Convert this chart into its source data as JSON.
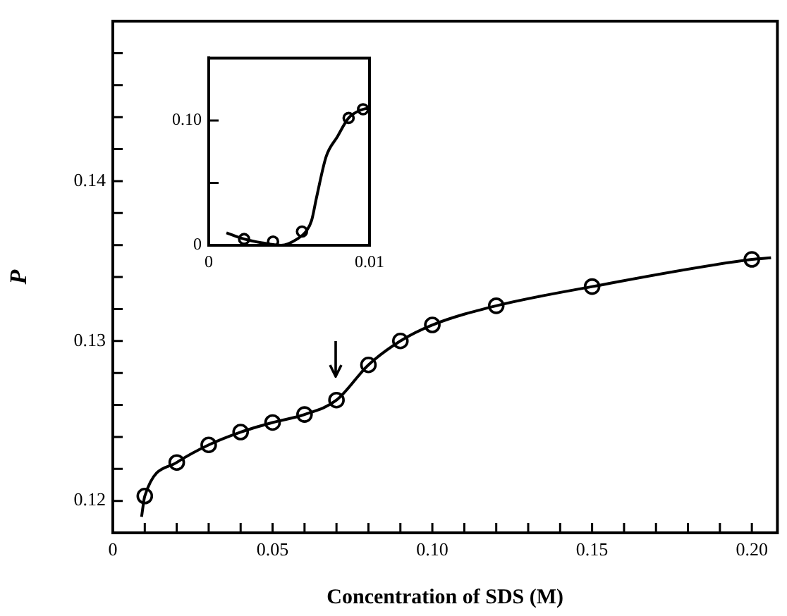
{
  "chart_data": [
    {
      "type": "line",
      "xlabel": "Concentration of SDS (M)",
      "ylabel": "P",
      "xlim": [
        0,
        0.208
      ],
      "ylim": [
        0.118,
        0.15
      ],
      "xticks": [
        0,
        {
          "value": 0.01,
          "label": null
        },
        {
          "value": 0.02,
          "label": null
        },
        {
          "value": 0.03,
          "label": null
        },
        {
          "value": 0.04,
          "label": null
        },
        0.05,
        {
          "value": 0.06,
          "label": null
        },
        {
          "value": 0.07,
          "label": null
        },
        {
          "value": 0.08,
          "label": null
        },
        {
          "value": 0.09,
          "label": null
        },
        {
          "value": 0.1,
          "label": "0.10"
        },
        {
          "value": 0.11,
          "label": null
        },
        {
          "value": 0.12,
          "label": null
        },
        {
          "value": 0.13,
          "label": null
        },
        {
          "value": 0.14,
          "label": null
        },
        0.15,
        {
          "value": 0.16,
          "label": null
        },
        {
          "value": 0.17,
          "label": null
        },
        {
          "value": 0.18,
          "label": null
        },
        {
          "value": 0.19,
          "label": null
        },
        {
          "value": 0.2,
          "label": "0.20"
        }
      ],
      "yticks": [
        0.12,
        {
          "value": 0.122,
          "label": null
        },
        {
          "value": 0.124,
          "label": null
        },
        {
          "value": 0.126,
          "label": null
        },
        {
          "value": 0.128,
          "label": null
        },
        0.13,
        {
          "value": 0.132,
          "label": null
        },
        {
          "value": 0.134,
          "label": null
        },
        {
          "value": 0.136,
          "label": null
        },
        {
          "value": 0.138,
          "label": null
        },
        0.14,
        {
          "value": 0.142,
          "label": null
        },
        {
          "value": 0.144,
          "label": null
        },
        {
          "value": 0.146,
          "label": null
        },
        {
          "value": 0.148,
          "label": null
        }
      ],
      "grid": false,
      "legend": false,
      "series": [
        {
          "marker": "none",
          "color": "#000000",
          "x": [
            0.009,
            0.01,
            0.02,
            0.03,
            0.04,
            0.05,
            0.06,
            0.07,
            0.08,
            0.09,
            0.1,
            0.12,
            0.15,
            0.2,
            0.206
          ],
          "values": [
            0.119,
            0.1203,
            0.1224,
            0.1235,
            0.1243,
            0.1249,
            0.1254,
            0.1263,
            0.1285,
            0.13,
            0.131,
            0.1322,
            0.1334,
            0.1351,
            0.1352
          ]
        },
        {
          "type": "scatter",
          "marker": "circle",
          "color": "#000000",
          "x": [
            0.01,
            0.02,
            0.03,
            0.04,
            0.05,
            0.06,
            0.07,
            0.08,
            0.09,
            0.1,
            0.12,
            0.15,
            0.2
          ],
          "values": [
            0.1203,
            0.1224,
            0.1235,
            0.1243,
            0.1249,
            0.1254,
            0.1263,
            0.1285,
            0.13,
            0.131,
            0.1322,
            0.1334,
            0.1351
          ]
        }
      ]
    },
    {
      "type": "line",
      "xlim": [
        0,
        0.01
      ],
      "ylim": [
        0,
        0.15
      ],
      "xticks": [
        0,
        0.01
      ],
      "yticks": [
        0,
        {
          "value": 0.05,
          "label": null
        },
        {
          "value": 0.1,
          "label": "0.10"
        }
      ],
      "grid": false,
      "legend": false,
      "series": [
        {
          "marker": "none",
          "color": "#000000",
          "x": [
            0.0011,
            0.0022,
            0.0033,
            0.0045,
            0.0055,
            0.0061,
            0.0064,
            0.0067,
            0.0073,
            0.008,
            0.0087,
            0.0096,
            0.01
          ],
          "values": [
            0.01,
            0.005,
            0.002,
            0.0,
            0.005,
            0.012,
            0.02,
            0.038,
            0.071,
            0.087,
            0.102,
            0.109,
            0.11
          ]
        },
        {
          "type": "scatter",
          "marker": "circle",
          "color": "#000000",
          "x": [
            0.0022,
            0.004,
            0.0058,
            0.0087,
            0.0096
          ],
          "values": [
            0.005,
            0.003,
            0.011,
            0.102,
            0.109
          ]
        }
      ]
    }
  ]
}
